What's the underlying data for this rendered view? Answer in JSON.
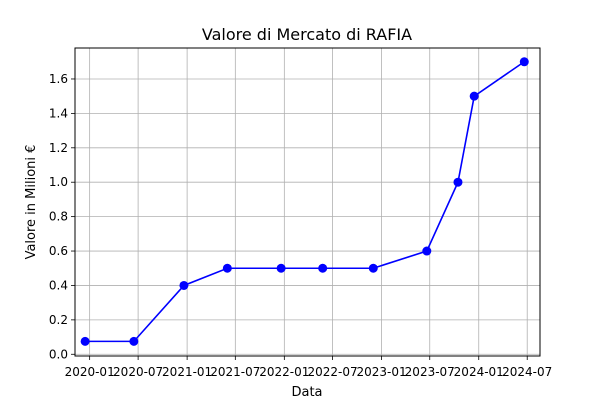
{
  "chart_data": {
    "type": "line",
    "title": "Valore di Mercato di RAFIA",
    "xlabel": "Data",
    "ylabel": "Valore in Milioni €",
    "x_tick_labels": [
      "2020-01",
      "2020-07",
      "2021-01",
      "2021-07",
      "2022-01",
      "2022-07",
      "2023-01",
      "2023-07",
      "2024-01",
      "2024-07"
    ],
    "y_tick_labels": [
      "0.0",
      "0.2",
      "0.4",
      "0.6",
      "0.8",
      "1.0",
      "1.2",
      "1.4",
      "1.6"
    ],
    "ylim": [
      -0.01,
      1.78
    ],
    "xlim": [
      "2019-11-07",
      "2024-08-18"
    ],
    "grid": true,
    "series": [
      {
        "color": "#0000ff",
        "x": [
          "2019-12-15",
          "2020-06-15",
          "2020-12-20",
          "2021-06-01",
          "2021-12-20",
          "2022-05-25",
          "2022-12-01",
          "2023-06-20",
          "2023-10-15",
          "2023-12-15",
          "2024-06-20"
        ],
        "y": [
          0.075,
          0.075,
          0.4,
          0.5,
          0.5,
          0.5,
          0.5,
          0.6,
          1.0,
          1.5,
          1.7
        ]
      }
    ]
  }
}
